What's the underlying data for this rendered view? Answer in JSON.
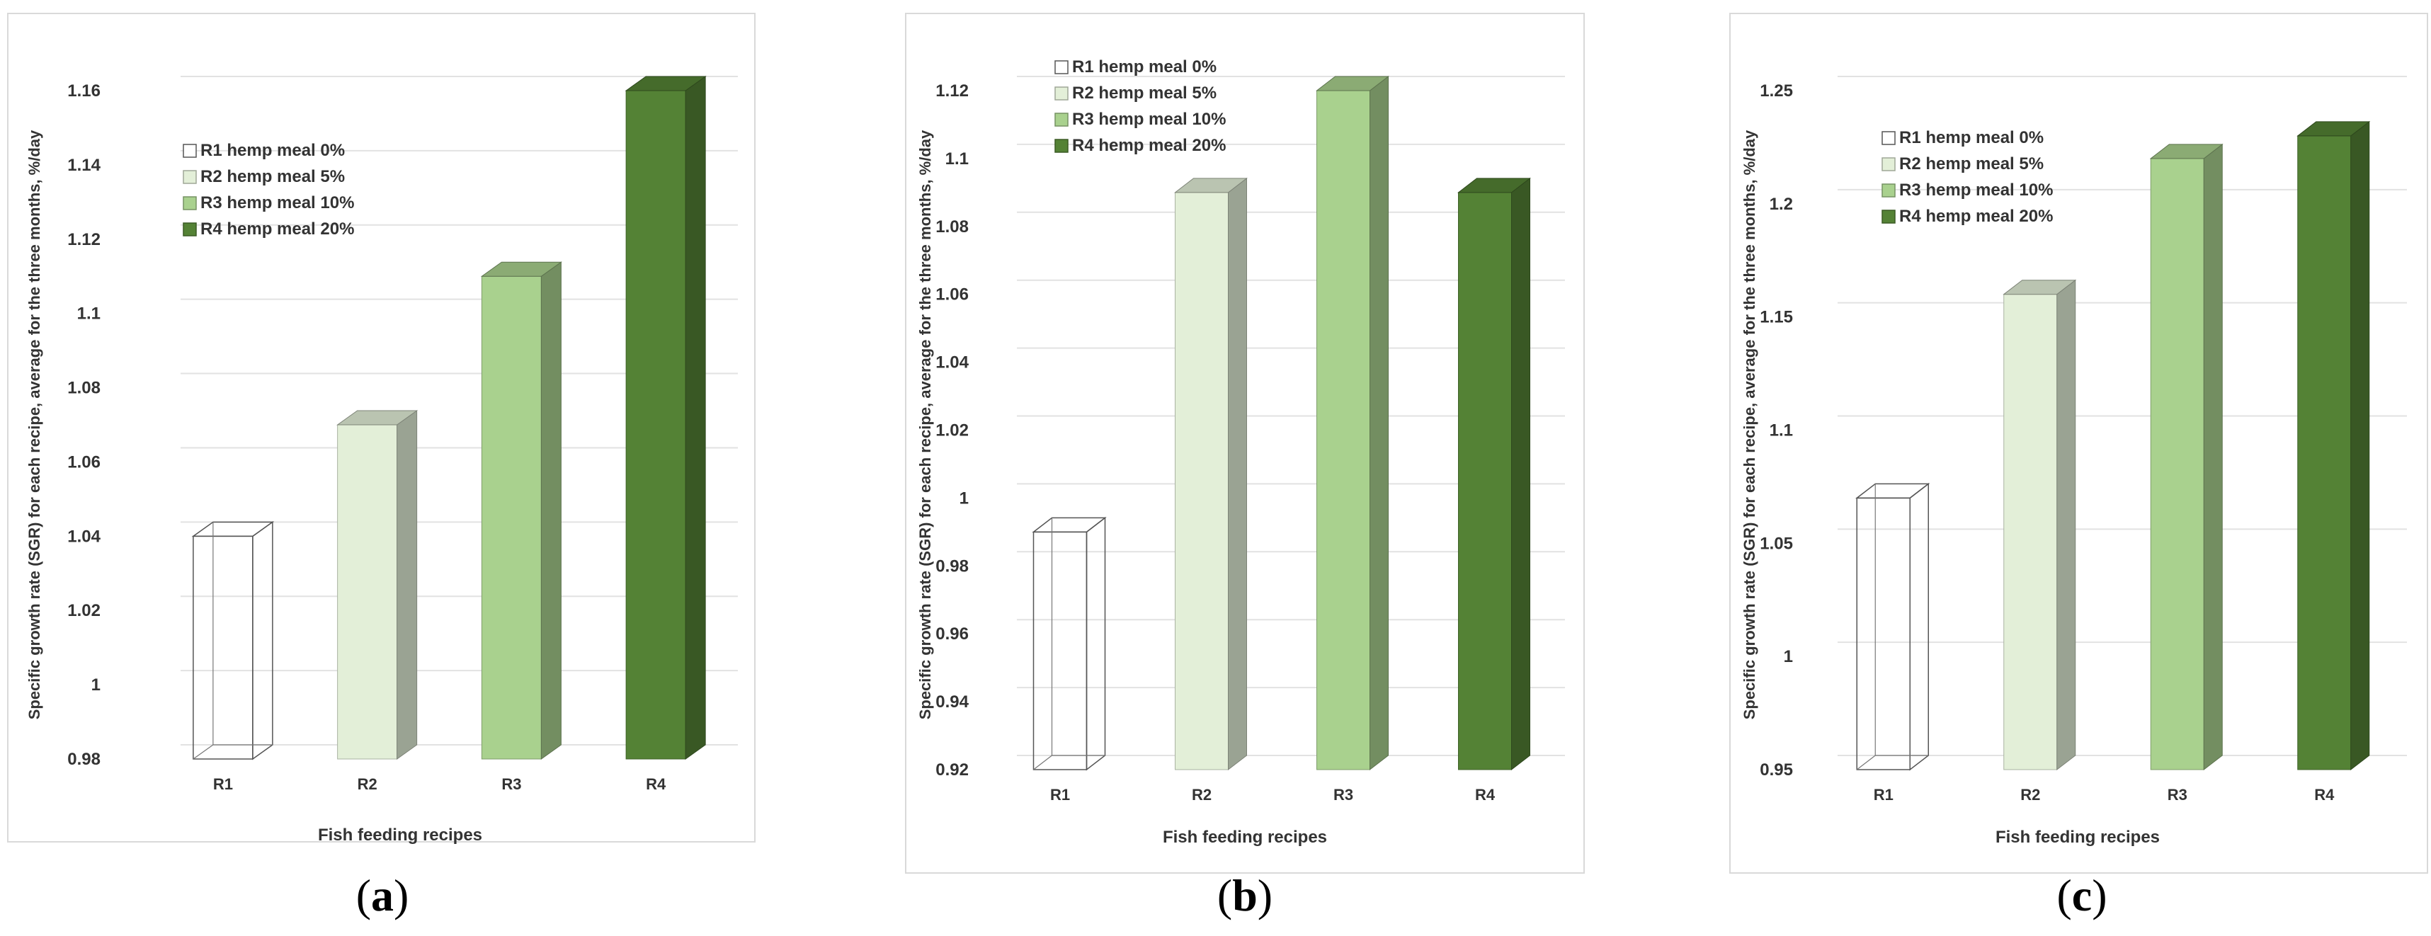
{
  "panels": [
    {
      "caption_letter": "a"
    },
    {
      "caption_letter": "b"
    },
    {
      "caption_letter": "c"
    }
  ],
  "colors": {
    "R1": "#ffffff",
    "R2": "#e3efd8",
    "R3": "#a9d18e",
    "R4": "#548235"
  },
  "chart_data": [
    {
      "type": "bar",
      "categories": [
        "R1",
        "R2",
        "R3",
        "R4"
      ],
      "values": [
        1.04,
        1.07,
        1.11,
        1.16
      ],
      "legend": [
        "R1  hemp meal 0%",
        "R2  hemp meal 5%",
        "R3  hemp meal 10%",
        "R4  hemp meal 20%"
      ],
      "xlabel": "Fish feeding recipes",
      "ylabel": "Specific growth rate (SGR) for each recipe, average for the three months, %/day",
      "ylim": [
        0.98,
        1.16
      ],
      "yticks": [
        "0.98",
        "1",
        "1.02",
        "1.04",
        "1.06",
        "1.08",
        "1.1",
        "1.12",
        "1.14",
        "1.16"
      ],
      "grid": true,
      "legend_position": "top-left"
    },
    {
      "type": "bar",
      "categories": [
        "R1",
        "R2",
        "R3",
        "R4"
      ],
      "values": [
        0.99,
        1.09,
        1.12,
        1.09
      ],
      "legend": [
        "R1  hemp meal 0%",
        "R2  hemp meal 5%",
        "R3  hemp meal 10%",
        "R4  hemp meal 20%"
      ],
      "xlabel": "Fish feeding recipes",
      "ylabel": "Specific growth rate (SGR) for each recipe, average for the three months, %/day",
      "ylim": [
        0.92,
        1.12
      ],
      "yticks": [
        "0.92",
        "0.94",
        "0.96",
        "0.98",
        "1",
        "1.02",
        "1.04",
        "1.06",
        "1.08",
        "1.1",
        "1.12"
      ],
      "grid": true,
      "legend_position": "top-left"
    },
    {
      "type": "bar",
      "categories": [
        "R1",
        "R2",
        "R3",
        "R4"
      ],
      "values": [
        1.07,
        1.16,
        1.22,
        1.23
      ],
      "legend": [
        "R1  hemp meal 0%",
        "R2  hemp meal 5%",
        "R3  hemp meal 10%",
        "R4  hemp meal 20%"
      ],
      "xlabel": "Fish feeding recipes",
      "ylabel": "Specific growth rate (SGR) for each recipe, average for the three months, %/day",
      "ylim": [
        0.95,
        1.25
      ],
      "yticks": [
        "0.95",
        "1",
        "1.05",
        "1.1",
        "1.15",
        "1.2",
        "1.25"
      ],
      "grid": true,
      "legend_position": "top-left"
    }
  ]
}
